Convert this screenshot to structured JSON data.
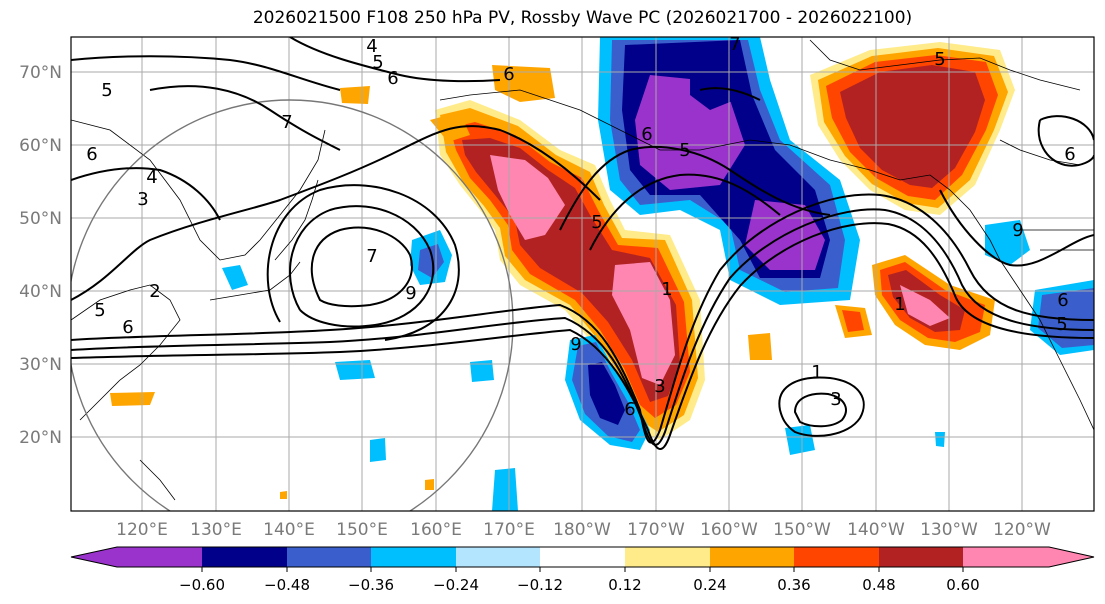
{
  "title": "2026021500 F108 250 hPa PV, Rossby Wave PC (2026021700 - 2026022100)",
  "lat_labels": [
    "70°N",
    "60°N",
    "50°N",
    "40°N",
    "30°N",
    "20°N"
  ],
  "lon_labels": [
    "120°E",
    "130°E",
    "140°E",
    "150°E",
    "160°E",
    "170°E",
    "180°W",
    "170°W",
    "160°W",
    "150°W",
    "140°W",
    "130°W",
    "120°W"
  ],
  "colorbar": {
    "colors": [
      "#9933cc",
      "#00008b",
      "#3a5fcd",
      "#00bfff",
      "#b3e5ff",
      "#ffffff",
      "#ffeb8a",
      "#ffa500",
      "#ff4500",
      "#b22222",
      "#ff86b0"
    ],
    "ticks": [
      "−0.60",
      "−0.48",
      "−0.36",
      "−0.24",
      "−0.12",
      "0.12",
      "0.24",
      "0.36",
      "0.48",
      "0.60"
    ]
  },
  "contour_labels": [
    "4",
    "5",
    "6",
    "5",
    "7",
    "6",
    "4",
    "3",
    "5",
    "6",
    "7",
    "9",
    "6",
    "5",
    "7",
    "6",
    "5",
    "1",
    "3",
    "6",
    "9",
    "2",
    "5",
    "1",
    "6",
    "9",
    "5",
    "6",
    "1",
    "3"
  ],
  "colors": {
    "grid": "#aaaaaa",
    "contour": "#000000",
    "frame": "#000000"
  }
}
